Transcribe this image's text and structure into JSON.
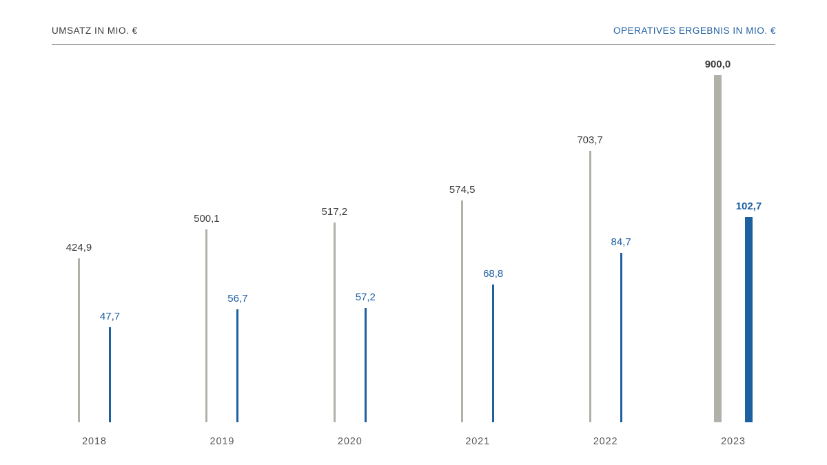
{
  "header": {
    "left_title": "UMSATZ IN MIO. €",
    "right_title": "OPERATIVES ERGEBNIS IN MIO. €"
  },
  "chart_data": {
    "type": "bar",
    "title": "Umsatz / Operatives Ergebnis in Mio. €",
    "categories": [
      "2018",
      "2019",
      "2020",
      "2021",
      "2022",
      "2023"
    ],
    "series": [
      {
        "name": "Umsatz in Mio. €",
        "axis": "left",
        "values": [
          424.9,
          500.1,
          517.2,
          574.5,
          703.7,
          900.0
        ],
        "labels": [
          "424,9",
          "500,1",
          "517,2",
          "574,5",
          "703,7",
          "900,0"
        ],
        "color": "#b1b1aa",
        "label_color": "#3c3c3b"
      },
      {
        "name": "Operatives Ergebnis in Mio. €",
        "axis": "right",
        "values": [
          47.7,
          56.7,
          57.2,
          68.8,
          84.7,
          102.7
        ],
        "labels": [
          "47,7",
          "56,7",
          "57,2",
          "68,8",
          "84,7",
          "102,7"
        ],
        "color": "#1e5fa0",
        "label_color": "#1e5fa0"
      }
    ],
    "highlight_category": "2023",
    "grid": false,
    "legend": "none",
    "left_axis_range": [
      0,
      900
    ],
    "right_axis_range": [
      0,
      110
    ]
  },
  "colors": {
    "background": "#ffffff",
    "rule": "#9d9d9c",
    "left_title": "#3c3c3b",
    "right_title": "#1e5fa0",
    "bar_umsatz": "#b1b1aa",
    "bar_ergebnis": "#1e5fa0",
    "year_label": "#575756"
  }
}
